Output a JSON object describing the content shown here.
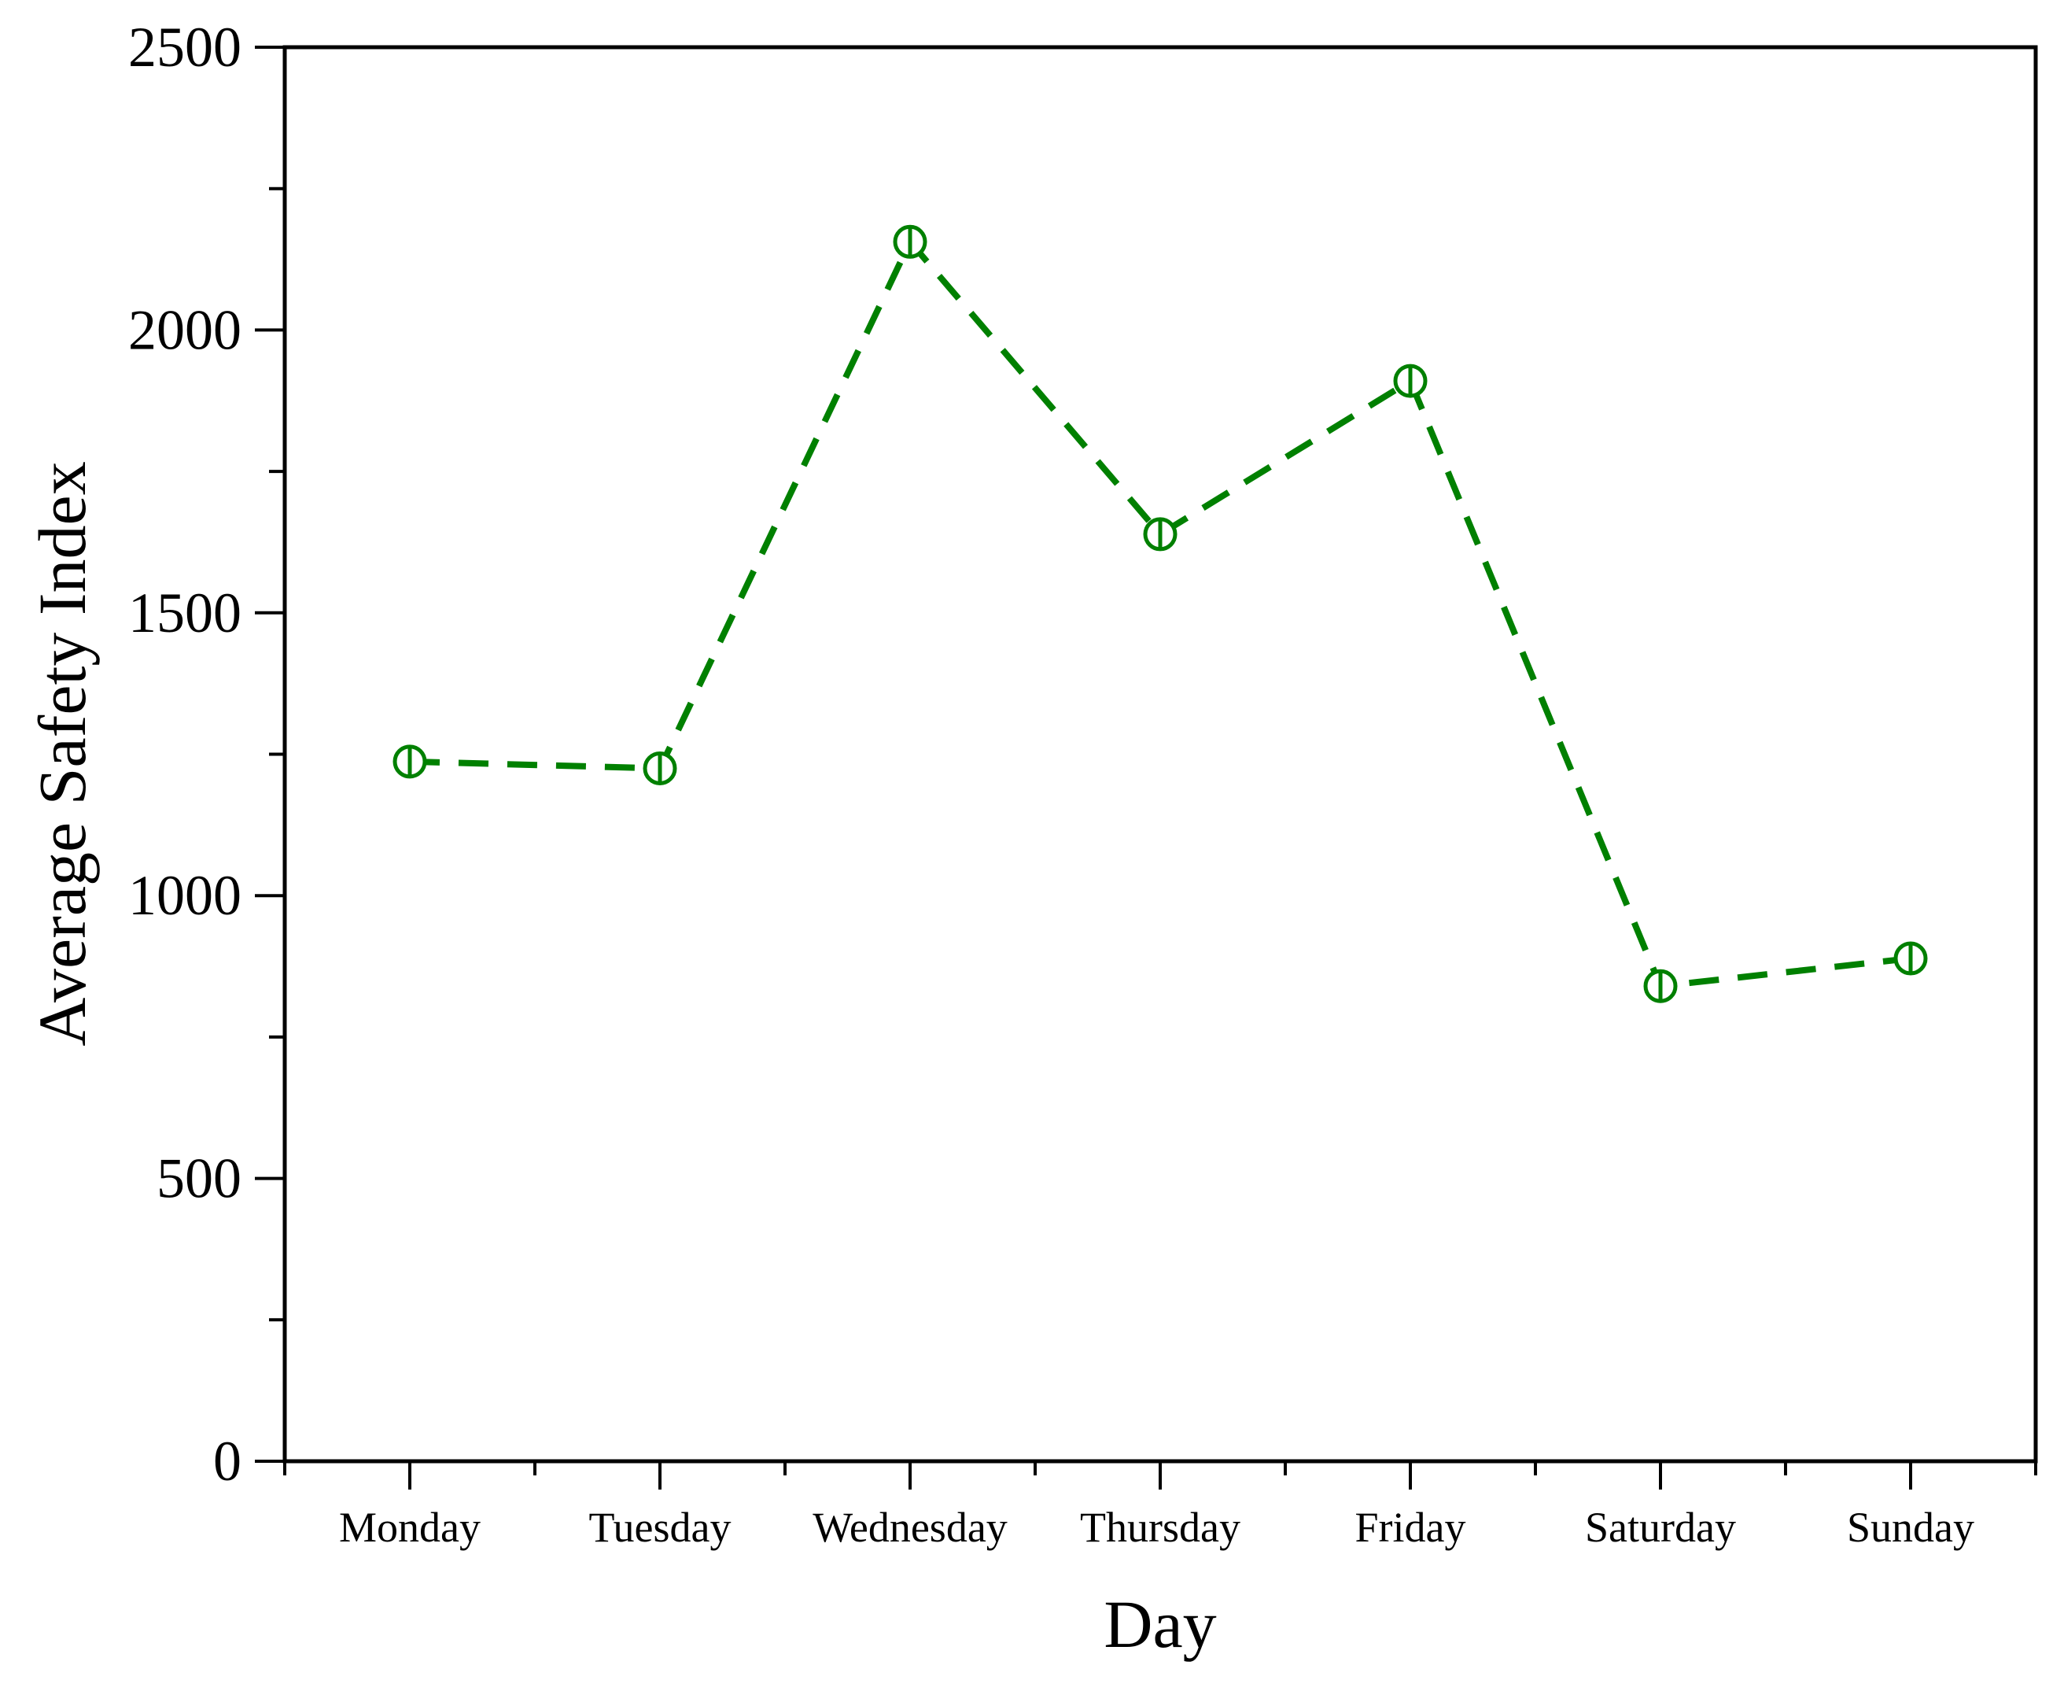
{
  "chart_data": {
    "type": "line",
    "title": "",
    "xlabel": "Day",
    "ylabel": "Average Safety Index",
    "categories": [
      "Monday",
      "Tuesday",
      "Wednesday",
      "Thursday",
      "Friday",
      "Saturday",
      "Sunday"
    ],
    "series": [
      {
        "values": [
          1237,
          1225,
          2156,
          1639,
          1910,
          840,
          889
        ],
        "color": "#008000",
        "line_style": "dashed",
        "marker": "open-circle-half-marked"
      }
    ],
    "ylim": [
      0,
      2500
    ],
    "yticks": [
      0,
      500,
      1000,
      1500,
      2000,
      2500
    ],
    "y_minor_tick_step": 250,
    "grid": false,
    "legend": "none",
    "frame": "full-box"
  }
}
